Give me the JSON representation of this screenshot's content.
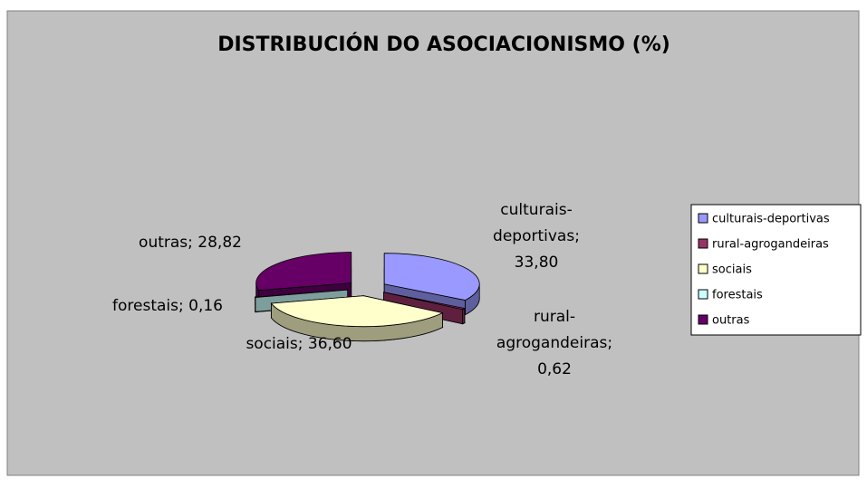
{
  "chart_data": {
    "type": "pie",
    "title": "DISTRIBUCIÓN DO ASOCIACIONISMO (%)",
    "categories": [
      "culturais-deportivas",
      "rural-agrogandeiras",
      "sociais",
      "forestais",
      "outras"
    ],
    "values": [
      33.8,
      0.62,
      36.6,
      0.16,
      28.82
    ],
    "value_labels": [
      "culturais-deportivas; 33,80",
      "rural-agrogandeiras; 0,62",
      "sociais; 36,60",
      "forestais; 0,16",
      "outras; 28,82"
    ],
    "colors": [
      "#9999ff",
      "#993366",
      "#ffffcc",
      "#ccffff",
      "#660066"
    ],
    "legend": "right"
  }
}
